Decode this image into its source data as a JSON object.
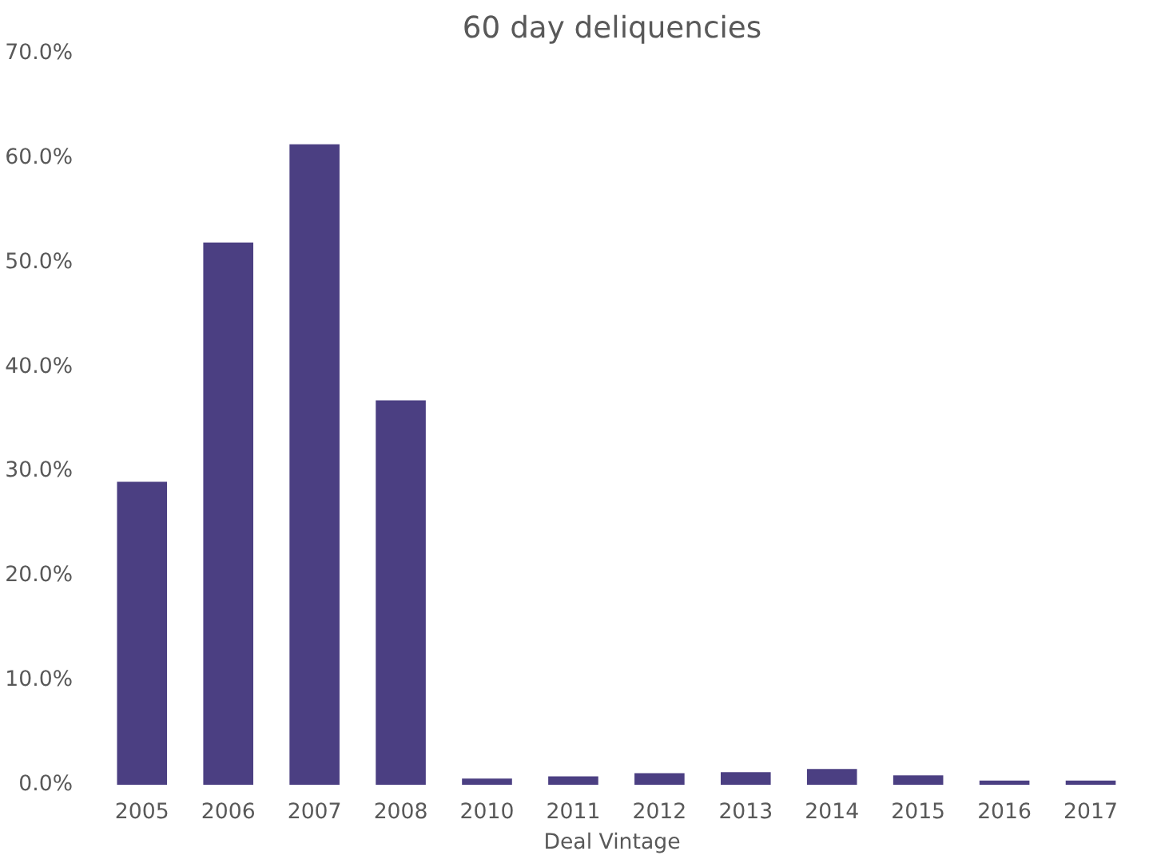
{
  "chart_data": {
    "type": "bar",
    "title": "60 day deliquencies",
    "xlabel": "Deal Vintage",
    "categories": [
      "2005",
      "2006",
      "2007",
      "2008",
      "2010",
      "2011",
      "2012",
      "2013",
      "2014",
      "2015",
      "2016",
      "2017"
    ],
    "values": [
      29.0,
      51.9,
      61.3,
      36.8,
      0.6,
      0.8,
      1.1,
      1.2,
      1.5,
      0.9,
      0.4,
      0.4
    ],
    "color": "#4b3f82",
    "ylim": [
      0,
      70
    ],
    "yticks": [
      {
        "value": 0,
        "label": "0.0%"
      },
      {
        "value": 10,
        "label": "10.0%"
      },
      {
        "value": 20,
        "label": "20.0%"
      },
      {
        "value": 30,
        "label": "30.0%"
      },
      {
        "value": 40,
        "label": "40.0%"
      },
      {
        "value": 50,
        "label": "50.0%"
      },
      {
        "value": 60,
        "label": "60.0%"
      },
      {
        "value": 70,
        "label": "70.0%"
      }
    ],
    "grid": false
  }
}
